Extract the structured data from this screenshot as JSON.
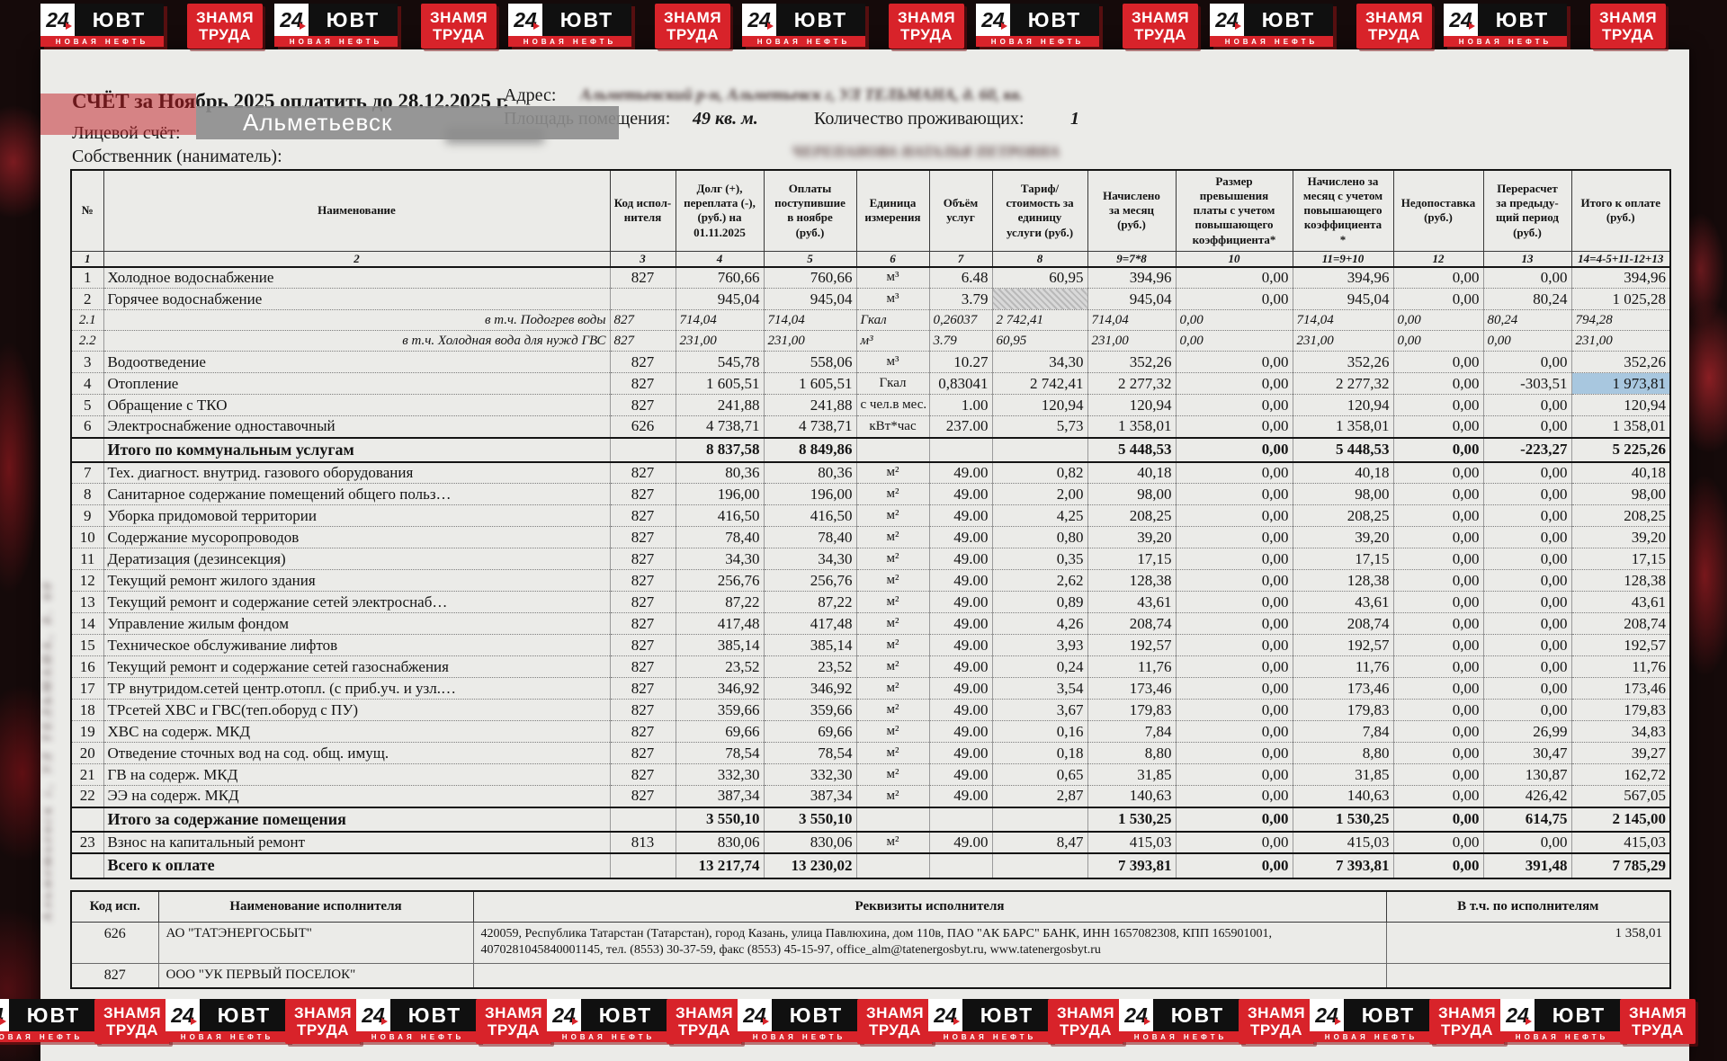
{
  "banner": {
    "uvt": {
      "num": "24",
      "name": "ЮВТ",
      "tagline": "НОВАЯ НЕФТЬ"
    },
    "znamya": {
      "line1": "ЗНАМЯ",
      "line2": "ТРУДА"
    },
    "top_pairs": 7,
    "bottom_pairs": 9
  },
  "overlay": {
    "location": "Альметьевск"
  },
  "header": {
    "bill_title": "СЧЁТ за Ноябрь 2025 оплатить до 28.12.2025 г.",
    "account_label": "Лицевой счёт:",
    "owner_label": "Собственник (наниматель):",
    "owner_redacted": "ЧЕРЕПАНОВА НАТАЛЬЯ ПЕТРОВНА",
    "address_label": "Адрес:",
    "address_redacted": "Альметьевский р-н, Альметьевск г, УЛ ТЕЛЬМАНА, д. 60, кв.",
    "area_label": "Площадь помещения:",
    "area_value": "49 кв. м.",
    "residents_label": "Количество проживающих:",
    "residents_value": "1",
    "margin_note": "Альметьевск г, УЛ ТЕЛЬМАНА, д. 60"
  },
  "table": {
    "headers": [
      "№",
      "Наименование",
      "Код испол-\nнителя",
      "Долг (+),\nпереплата (-),\n(руб.) на\n01.11.2025",
      "Оплаты\nпоступившие\nв ноябре\n(руб.)",
      "Единица\nизмерения",
      "Объём\nуслуг",
      "Тариф/\nстоимость за\nединицу\nуслуги (руб.)",
      "Начислено\nза месяц\n(руб.)",
      "Размер\nпревышения\nплаты с учетом\nповышающего\nкоэффициента*",
      "Начислено за\nмесяц с учетом\nповышающего\nкоэффициента\n*",
      "Недопоставка\n(руб.)",
      "Перерасчет\nза предыду-\nщий период\n(руб.)",
      "Итого к оплате\n(руб.)"
    ],
    "col_numbers": [
      "1",
      "2",
      "3",
      "4",
      "5",
      "6",
      "7",
      "8",
      "9=7*8",
      "10",
      "11=9+10",
      "12",
      "13",
      "14=4-5+11-12+13"
    ],
    "rows": [
      {
        "t": "i",
        "c": [
          "1",
          "Холодное водоснабжение",
          "827",
          "760,66",
          "760,66",
          "м³",
          "6.48",
          "60,95",
          "394,96",
          "0,00",
          "394,96",
          "0,00",
          "0,00",
          "394,96"
        ]
      },
      {
        "t": "i",
        "hatch": 7,
        "c": [
          "2",
          "Горячее водоснабжение",
          "",
          "945,04",
          "945,04",
          "м³",
          "3.79",
          "",
          "945,04",
          "0,00",
          "945,04",
          "0,00",
          "80,24",
          "1 025,28"
        ]
      },
      {
        "t": "s",
        "c": [
          "2.1",
          "в т.ч. Подогрев воды",
          "827",
          "714,04",
          "714,04",
          "Гкал",
          "0,26037",
          "2 742,41",
          "714,04",
          "0,00",
          "714,04",
          "0,00",
          "80,24",
          "794,28"
        ]
      },
      {
        "t": "s",
        "c": [
          "2.2",
          "в т.ч. Холодная вода для нужд ГВС",
          "827",
          "231,00",
          "231,00",
          "м³",
          "3.79",
          "60,95",
          "231,00",
          "0,00",
          "231,00",
          "0,00",
          "0,00",
          "231,00"
        ]
      },
      {
        "t": "i",
        "c": [
          "3",
          "Водоотведение",
          "827",
          "545,78",
          "558,06",
          "м³",
          "10.27",
          "34,30",
          "352,26",
          "0,00",
          "352,26",
          "0,00",
          "0,00",
          "352,26"
        ]
      },
      {
        "t": "i",
        "hl": 13,
        "c": [
          "4",
          "Отопление",
          "827",
          "1 605,51",
          "1 605,51",
          "Гкал",
          "0,83041",
          "2 742,41",
          "2 277,32",
          "0,00",
          "2 277,32",
          "0,00",
          "-303,51",
          "1 973,81"
        ]
      },
      {
        "t": "i",
        "c": [
          "5",
          "Обращение с ТКО",
          "827",
          "241,88",
          "241,88",
          "с чел.в мес.",
          "1.00",
          "120,94",
          "120,94",
          "0,00",
          "120,94",
          "0,00",
          "0,00",
          "120,94"
        ]
      },
      {
        "t": "i",
        "c": [
          "6",
          "Электроснабжение одноставочный",
          "626",
          "4 738,71",
          "4 738,71",
          "кВт*час",
          "237.00",
          "5,73",
          "1 358,01",
          "0,00",
          "1 358,01",
          "0,00",
          "0,00",
          "1 358,01"
        ]
      },
      {
        "t": "st",
        "c": [
          "",
          "Итого по коммунальным услугам",
          "",
          "8 837,58",
          "8 849,86",
          "",
          "",
          "",
          "5 448,53",
          "0,00",
          "5 448,53",
          "0,00",
          "-223,27",
          "5 225,26"
        ]
      },
      {
        "t": "i",
        "c": [
          "7",
          "Тех. диагност. внутрид. газового оборудования",
          "827",
          "80,36",
          "80,36",
          "м²",
          "49.00",
          "0,82",
          "40,18",
          "0,00",
          "40,18",
          "0,00",
          "0,00",
          "40,18"
        ]
      },
      {
        "t": "i",
        "c": [
          "8",
          "Санитарное содержание помещений общего польз…",
          "827",
          "196,00",
          "196,00",
          "м²",
          "49.00",
          "2,00",
          "98,00",
          "0,00",
          "98,00",
          "0,00",
          "0,00",
          "98,00"
        ]
      },
      {
        "t": "i",
        "c": [
          "9",
          "Уборка придомовой территории",
          "827",
          "416,50",
          "416,50",
          "м²",
          "49.00",
          "4,25",
          "208,25",
          "0,00",
          "208,25",
          "0,00",
          "0,00",
          "208,25"
        ]
      },
      {
        "t": "i",
        "c": [
          "10",
          "Содержание мусоропроводов",
          "827",
          "78,40",
          "78,40",
          "м²",
          "49.00",
          "0,80",
          "39,20",
          "0,00",
          "39,20",
          "0,00",
          "0,00",
          "39,20"
        ]
      },
      {
        "t": "i",
        "c": [
          "11",
          "Дератизация (дезинсекция)",
          "827",
          "34,30",
          "34,30",
          "м²",
          "49.00",
          "0,35",
          "17,15",
          "0,00",
          "17,15",
          "0,00",
          "0,00",
          "17,15"
        ]
      },
      {
        "t": "i",
        "c": [
          "12",
          "Текущий ремонт жилого здания",
          "827",
          "256,76",
          "256,76",
          "м²",
          "49.00",
          "2,62",
          "128,38",
          "0,00",
          "128,38",
          "0,00",
          "0,00",
          "128,38"
        ]
      },
      {
        "t": "i",
        "c": [
          "13",
          "Текущий ремонт и содержание сетей электроснаб…",
          "827",
          "87,22",
          "87,22",
          "м²",
          "49.00",
          "0,89",
          "43,61",
          "0,00",
          "43,61",
          "0,00",
          "0,00",
          "43,61"
        ]
      },
      {
        "t": "i",
        "c": [
          "14",
          "Управление жилым фондом",
          "827",
          "417,48",
          "417,48",
          "м²",
          "49.00",
          "4,26",
          "208,74",
          "0,00",
          "208,74",
          "0,00",
          "0,00",
          "208,74"
        ]
      },
      {
        "t": "i",
        "c": [
          "15",
          "Техническое обслуживание лифтов",
          "827",
          "385,14",
          "385,14",
          "м²",
          "49.00",
          "3,93",
          "192,57",
          "0,00",
          "192,57",
          "0,00",
          "0,00",
          "192,57"
        ]
      },
      {
        "t": "i",
        "c": [
          "16",
          "Текущий ремонт и содержание сетей газоснабжения",
          "827",
          "23,52",
          "23,52",
          "м²",
          "49.00",
          "0,24",
          "11,76",
          "0,00",
          "11,76",
          "0,00",
          "0,00",
          "11,76"
        ]
      },
      {
        "t": "i",
        "c": [
          "17",
          "ТР внутридом.сетей центр.отопл. (с приб.уч. и узл.…",
          "827",
          "346,92",
          "346,92",
          "м²",
          "49.00",
          "3,54",
          "173,46",
          "0,00",
          "173,46",
          "0,00",
          "0,00",
          "173,46"
        ]
      },
      {
        "t": "i",
        "c": [
          "18",
          "ТРсетей ХВС и ГВС(теп.оборуд с ПУ)",
          "827",
          "359,66",
          "359,66",
          "м²",
          "49.00",
          "3,67",
          "179,83",
          "0,00",
          "179,83",
          "0,00",
          "0,00",
          "179,83"
        ]
      },
      {
        "t": "i",
        "c": [
          "19",
          "ХВС на содерж. МКД",
          "827",
          "69,66",
          "69,66",
          "м²",
          "49.00",
          "0,16",
          "7,84",
          "0,00",
          "7,84",
          "0,00",
          "26,99",
          "34,83"
        ]
      },
      {
        "t": "i",
        "c": [
          "20",
          "Отведение сточных вод на сод. общ. имущ.",
          "827",
          "78,54",
          "78,54",
          "м²",
          "49.00",
          "0,18",
          "8,80",
          "0,00",
          "8,80",
          "0,00",
          "30,47",
          "39,27"
        ]
      },
      {
        "t": "i",
        "c": [
          "21",
          "ГВ на содерж. МКД",
          "827",
          "332,30",
          "332,30",
          "м²",
          "49.00",
          "0,65",
          "31,85",
          "0,00",
          "31,85",
          "0,00",
          "130,87",
          "162,72"
        ]
      },
      {
        "t": "i",
        "c": [
          "22",
          "ЭЭ на содерж. МКД",
          "827",
          "387,34",
          "387,34",
          "м²",
          "49.00",
          "2,87",
          "140,63",
          "0,00",
          "140,63",
          "0,00",
          "426,42",
          "567,05"
        ]
      },
      {
        "t": "st",
        "c": [
          "",
          "Итого за содержание помещения",
          "",
          "3 550,10",
          "3 550,10",
          "",
          "",
          "",
          "1 530,25",
          "0,00",
          "1 530,25",
          "0,00",
          "614,75",
          "2 145,00"
        ]
      },
      {
        "t": "i",
        "c": [
          "23",
          "Взнос на капитальный ремонт",
          "813",
          "830,06",
          "830,06",
          "м²",
          "49.00",
          "8,47",
          "415,03",
          "0,00",
          "415,03",
          "0,00",
          "0,00",
          "415,03"
        ]
      },
      {
        "t": "tt",
        "c": [
          "",
          "Всего к оплате",
          "",
          "13 217,74",
          "13 230,02",
          "",
          "",
          "",
          "7 393,81",
          "0,00",
          "7 393,81",
          "0,00",
          "391,48",
          "7 785,29"
        ]
      }
    ]
  },
  "providers": {
    "headers": {
      "code": "Код исп.",
      "name": "Наименование исполнителя",
      "details": "Реквизиты исполнителя",
      "per": "В т.ч. по исполнителям"
    },
    "rows": [
      {
        "code": "626",
        "name": "АО \"ТАТЭНЕРГОСБЫТ\"",
        "details": "420059, Республика Татарстан (Татарстан), город Казань, улица Павлюхина, дом 110в, ПАО \"АК БАРС\" БАНК, ИНН 1657082308, КПП 165901001, 4070281045840001145, тел. (8553) 30-37-59, факс (8553) 45-15-97, office_alm@tatenergosbyt.ru, www.tatenergosbyt.ru",
        "amount": "1 358,01"
      },
      {
        "code": "827",
        "name": "ООО \"УК ПЕРВЫЙ ПОСЕЛОК\"",
        "details": "",
        "amount": ""
      }
    ]
  }
}
